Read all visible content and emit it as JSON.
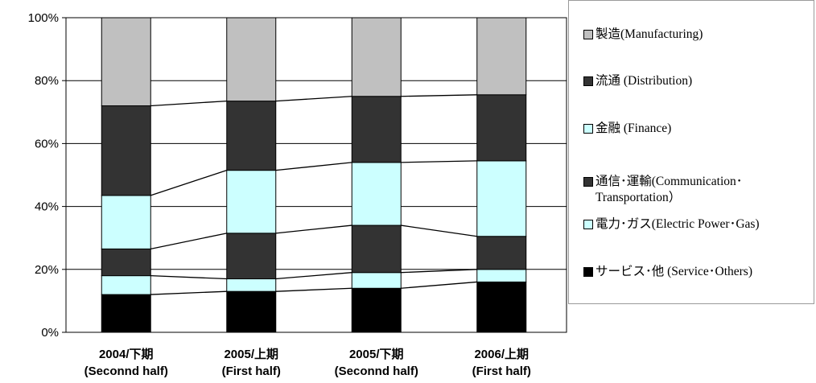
{
  "chart_data": {
    "type": "bar",
    "stacked": true,
    "categories": [
      [
        "2004/下期",
        "(Seconnd half)"
      ],
      [
        "2005/上期",
        "(First half)"
      ],
      [
        "2005/下期",
        "(Seconnd half)"
      ],
      [
        "2006/上期",
        "(First half)"
      ]
    ],
    "y_ticks": [
      "0%",
      "20%",
      "40%",
      "60%",
      "80%",
      "100%"
    ],
    "ylim": [
      0,
      100
    ],
    "grid": true,
    "legend_position": "right",
    "series_lines": true,
    "series": [
      {
        "name": "サービス･他 (Service･Others)",
        "color": "#000000",
        "values": [
          12,
          13,
          14,
          16
        ]
      },
      {
        "name": "電力･ガス(Electric Power･Gas)",
        "color": "#ccffff",
        "values": [
          6,
          4,
          5,
          4
        ]
      },
      {
        "name": "通信･運輸(Communication･\nTransportation)",
        "color": "#333333",
        "values": [
          8.5,
          14.5,
          15,
          10.5
        ]
      },
      {
        "name": "金融 (Finance)",
        "color": "#ccffff",
        "values": [
          17,
          20,
          20,
          24
        ]
      },
      {
        "name": "流通 (Distribution)",
        "color": "#333333",
        "values": [
          28.5,
          22,
          21,
          21
        ]
      },
      {
        "name": "製造(Manufacturing)",
        "color": "#c0c0c0",
        "values": [
          28,
          26.5,
          25,
          24.5
        ]
      }
    ]
  },
  "legend": {
    "items": [
      {
        "label": "製造(Manufacturing)",
        "color": "#c0c0c0"
      },
      {
        "label": "流通 (Distribution)",
        "color": "#333333"
      },
      {
        "label": "金融 (Finance)",
        "color": "#ccffff"
      },
      {
        "label": "通信･運輸(Communication･\nTransportation）",
        "color": "#333333"
      },
      {
        "label": "電力･ガス(Electric Power･Gas)",
        "color": "#ccffff"
      },
      {
        "label": "サービス･他 (Service･Others)",
        "color": "#000000"
      }
    ]
  }
}
